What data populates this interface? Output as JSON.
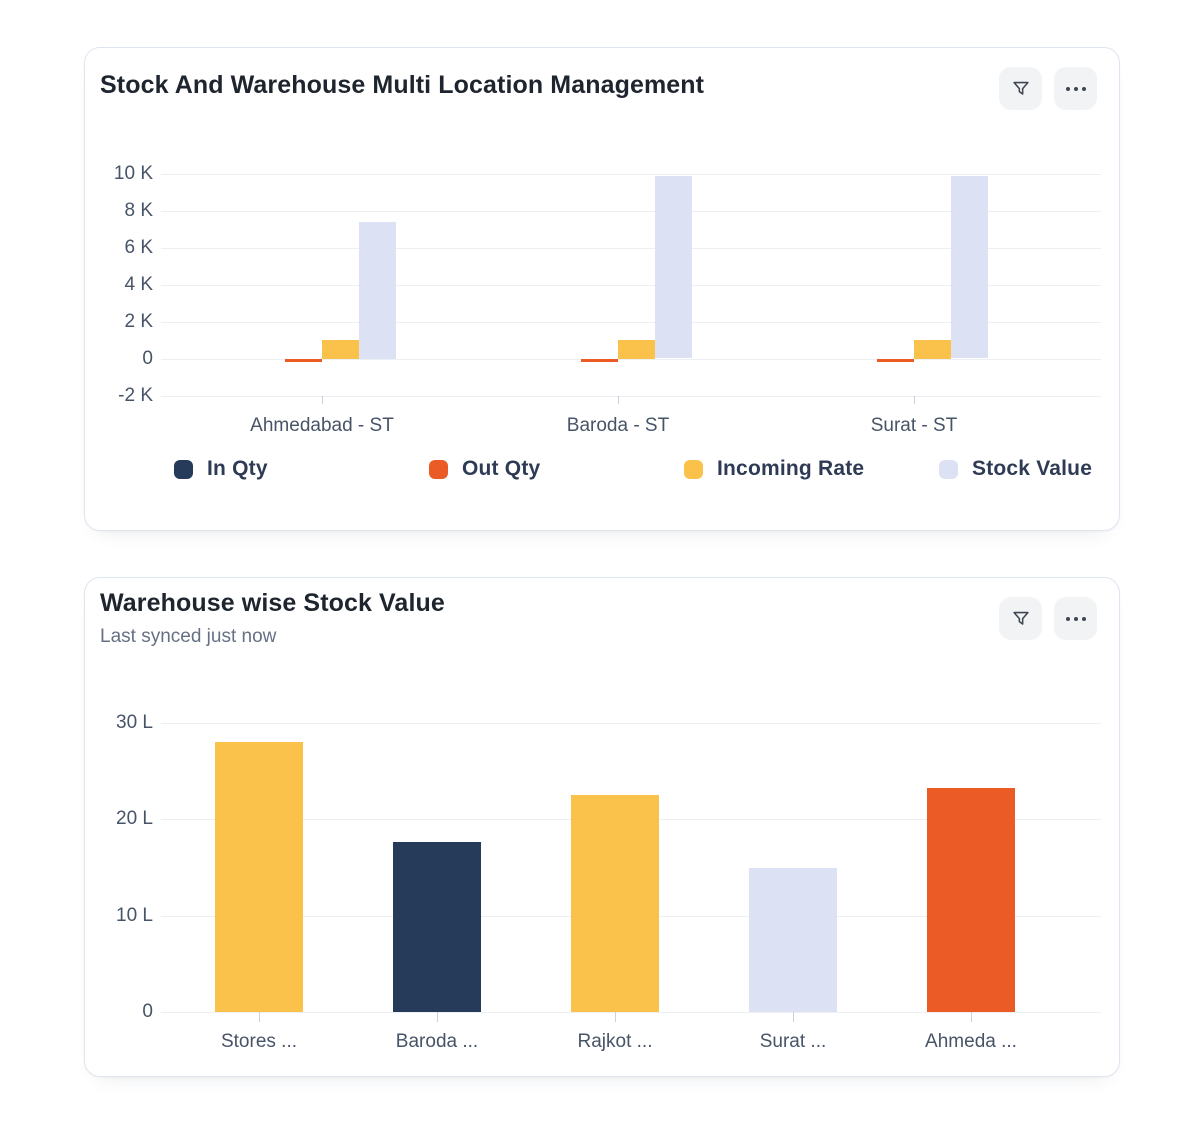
{
  "cards": [
    {
      "title": "Stock And Warehouse Multi Location Management",
      "actions": [
        {
          "label": "Filter",
          "icon": "funnel-icon"
        },
        {
          "label": "More options",
          "icon": "ellipsis-icon"
        }
      ]
    },
    {
      "title": "Warehouse wise Stock Value",
      "subtitle": "Last synced just now",
      "actions": [
        {
          "label": "Filter",
          "icon": "funnel-icon"
        },
        {
          "label": "More options",
          "icon": "ellipsis-icon"
        }
      ]
    }
  ],
  "colors": {
    "in_qty": "#263B59",
    "out_qty": "#EB5B26",
    "incoming_rate": "#FBC24B",
    "stock_value": "#DCE2F4",
    "card_border": "#DFE5F0",
    "gridline": "#ECEFF4",
    "axis_text": "#475467",
    "legend_text": "#2F3B55",
    "title_text": "#1E252E",
    "subtitle_text": "#667085",
    "button_bg": "#F2F3F5"
  },
  "chart_data": [
    {
      "type": "bar",
      "title": "Stock And Warehouse Multi Location Management",
      "categories": [
        "Ahmedabad - ST",
        "Baroda - ST",
        "Surat - ST"
      ],
      "series": [
        {
          "name": "In Qty",
          "color": "#263B59",
          "values": [
            0,
            0,
            0
          ]
        },
        {
          "name": "Out Qty",
          "color": "#EB5B26",
          "values": [
            -200,
            -200,
            -200
          ]
        },
        {
          "name": "Incoming Rate",
          "color": "#FBC24B",
          "values": [
            1000,
            1000,
            1000
          ]
        },
        {
          "name": "Stock Value",
          "color": "#DCE2F4",
          "values": [
            7400,
            9900,
            9900
          ]
        }
      ],
      "ylim": [
        -2000,
        10000
      ],
      "yticks": [
        {
          "value": 10000,
          "label": "10 K"
        },
        {
          "value": 8000,
          "label": "8 K"
        },
        {
          "value": 6000,
          "label": "6 K"
        },
        {
          "value": 4000,
          "label": "4 K"
        },
        {
          "value": 2000,
          "label": "2 K"
        },
        {
          "value": 0,
          "label": "0"
        },
        {
          "value": -2000,
          "label": "-2 K"
        }
      ],
      "grid": true,
      "legend_position": "bottom"
    },
    {
      "type": "bar",
      "title": "Warehouse wise Stock Value",
      "unit": "L",
      "categories": [
        "Stores ...",
        "Baroda ...",
        "Rajkot ...",
        "Surat ...",
        "Ahmeda ..."
      ],
      "values": [
        28,
        17.7,
        22.5,
        15,
        23.3
      ],
      "bar_colors": [
        "#FBC24B",
        "#263B59",
        "#FBC24B",
        "#DCE2F4",
        "#EB5B26"
      ],
      "ylim": [
        0,
        30
      ],
      "yticks": [
        {
          "value": 30,
          "label": "30 L"
        },
        {
          "value": 20,
          "label": "20 L"
        },
        {
          "value": 10,
          "label": "10 L"
        },
        {
          "value": 0,
          "label": "0"
        }
      ],
      "grid": true,
      "legend_position": "none"
    }
  ]
}
